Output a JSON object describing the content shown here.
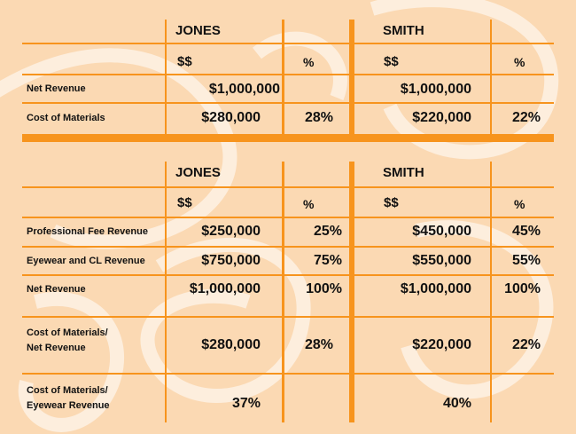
{
  "colors": {
    "background": "#fbd9b3",
    "accent": "#f7941d",
    "text": "#111111"
  },
  "watermark_icon": "large-faded-numerals-icon",
  "table1": {
    "jones": "JONES",
    "smith": "SMITH",
    "jones_dollars": "$$",
    "jones_percent": "%",
    "smith_dollars": "$$",
    "smith_percent": "%",
    "rows": [
      {
        "label": "Net Revenue",
        "jones_amount": "$1,000,000",
        "jones_pct": "",
        "smith_amount": "$1,000,000",
        "smith_pct": ""
      },
      {
        "label": "Cost of Materials",
        "jones_amount": "$280,000",
        "jones_pct": "28%",
        "smith_amount": "$220,000",
        "smith_pct": "22%"
      }
    ]
  },
  "table2": {
    "jones": "JONES",
    "smith": "SMITH",
    "jones_dollars": "$$",
    "jones_percent": "%",
    "smith_dollars": "$$",
    "smith_percent": "%",
    "rows": [
      {
        "label_1": "Professional Fee Revenue",
        "label_2": "",
        "jones_amount": "$250,000",
        "jones_pct": "25%",
        "smith_amount": "$450,000",
        "smith_pct": "45%"
      },
      {
        "label_1": "Eyewear and CL Revenue",
        "label_2": "",
        "jones_amount": "$750,000",
        "jones_pct": "75%",
        "smith_amount": "$550,000",
        "smith_pct": "55%"
      },
      {
        "label_1": "Net Revenue",
        "label_2": "",
        "jones_amount": "$1,000,000",
        "jones_pct": "100%",
        "smith_amount": "$1,000,000",
        "smith_pct": "100%"
      },
      {
        "label_1": "Cost of Materials/",
        "label_2": "Net Revenue",
        "jones_amount": "$280,000",
        "jones_pct": "28%",
        "smith_amount": "$220,000",
        "smith_pct": "22%"
      },
      {
        "label_1": "Cost of Materials/",
        "label_2": "Eyewear Revenue",
        "jones_amount": "37%",
        "jones_pct": "",
        "smith_amount": "40%",
        "smith_pct": ""
      }
    ]
  }
}
